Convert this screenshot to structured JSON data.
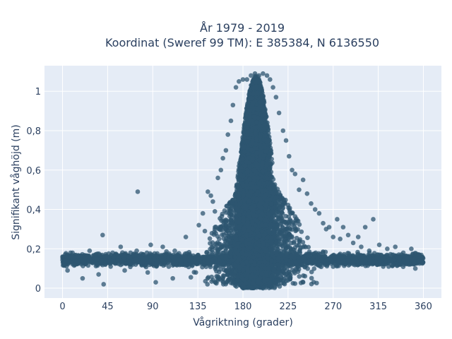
{
  "chart_data": {
    "type": "scatter",
    "title": "År 1979 - 2019",
    "subtitle": "Koordinat (Sweref 99 TM): E 385384, N 6136550",
    "xlabel": "Vågriktning (grader)",
    "ylabel": "Signifikant våghöjd (m)",
    "xlim": [
      -18,
      378
    ],
    "ylim": [
      -0.05,
      1.13
    ],
    "x_ticks": [
      0,
      45,
      90,
      135,
      180,
      225,
      270,
      315,
      360
    ],
    "y_ticks": [
      0,
      0.2,
      0.4,
      0.6,
      0.8,
      1
    ],
    "y_tick_labels": [
      "0",
      "0,2",
      "0,4",
      "0,6",
      "0,8",
      "1"
    ],
    "grid": true,
    "marker_color": "#2e5670",
    "background_color": "#e5ecf6",
    "points": [
      [
        0,
        0.16
      ],
      [
        3,
        0.14
      ],
      [
        5,
        0.09
      ],
      [
        8,
        0.18
      ],
      [
        12,
        0.12
      ],
      [
        15,
        0.16
      ],
      [
        20,
        0.05
      ],
      [
        22,
        0.15
      ],
      [
        27,
        0.19
      ],
      [
        30,
        0.13
      ],
      [
        33,
        0.17
      ],
      [
        36,
        0.07
      ],
      [
        39,
        0.14
      ],
      [
        40,
        0.27
      ],
      [
        41,
        0.02
      ],
      [
        44,
        0.16
      ],
      [
        48,
        0.11
      ],
      [
        50,
        0.18
      ],
      [
        55,
        0.14
      ],
      [
        58,
        0.21
      ],
      [
        62,
        0.09
      ],
      [
        66,
        0.16
      ],
      [
        70,
        0.12
      ],
      [
        74,
        0.19
      ],
      [
        75,
        0.49
      ],
      [
        80,
        0.15
      ],
      [
        85,
        0.08
      ],
      [
        88,
        0.22
      ],
      [
        93,
        0.03
      ],
      [
        95,
        0.16
      ],
      [
        100,
        0.21
      ],
      [
        105,
        0.13
      ],
      [
        110,
        0.05
      ],
      [
        112,
        0.19
      ],
      [
        118,
        0.12
      ],
      [
        123,
        0.26
      ],
      [
        128,
        0.15
      ],
      [
        133,
        0.08
      ],
      [
        136,
        0.32
      ],
      [
        140,
        0.38
      ],
      [
        142,
        0.29
      ],
      [
        145,
        0.49
      ],
      [
        148,
        0.47
      ],
      [
        150,
        0.44
      ],
      [
        152,
        0.39
      ],
      [
        155,
        0.56
      ],
      [
        158,
        0.6
      ],
      [
        160,
        0.66
      ],
      [
        163,
        0.7
      ],
      [
        165,
        0.78
      ],
      [
        168,
        0.85
      ],
      [
        170,
        0.93
      ],
      [
        173,
        1.02
      ],
      [
        176,
        1.05
      ],
      [
        180,
        1.06
      ],
      [
        184,
        1.06
      ],
      [
        188,
        1.08
      ],
      [
        192,
        1.09
      ],
      [
        196,
        1.08
      ],
      [
        200,
        1.09
      ],
      [
        204,
        1.08
      ],
      [
        207,
        1.06
      ],
      [
        210,
        1.02
      ],
      [
        213,
        0.97
      ],
      [
        216,
        0.89
      ],
      [
        220,
        0.8
      ],
      [
        223,
        0.75
      ],
      [
        226,
        0.67
      ],
      [
        229,
        0.6
      ],
      [
        232,
        0.58
      ],
      [
        236,
        0.5
      ],
      [
        240,
        0.55
      ],
      [
        244,
        0.48
      ],
      [
        248,
        0.43
      ],
      [
        252,
        0.4
      ],
      [
        256,
        0.38
      ],
      [
        260,
        0.33
      ],
      [
        263,
        0.3
      ],
      [
        266,
        0.31
      ],
      [
        270,
        0.26
      ],
      [
        274,
        0.35
      ],
      [
        277,
        0.25
      ],
      [
        280,
        0.31
      ],
      [
        285,
        0.27
      ],
      [
        290,
        0.23
      ],
      [
        295,
        0.26
      ],
      [
        298,
        0.21
      ],
      [
        302,
        0.31
      ],
      [
        306,
        0.19
      ],
      [
        310,
        0.35
      ],
      [
        314,
        0.17
      ],
      [
        316,
        0.22
      ],
      [
        320,
        0.11
      ],
      [
        324,
        0.2
      ],
      [
        328,
        0.14
      ],
      [
        332,
        0.21
      ],
      [
        336,
        0.12
      ],
      [
        340,
        0.18
      ],
      [
        344,
        0.15
      ],
      [
        348,
        0.2
      ],
      [
        352,
        0.1
      ],
      [
        356,
        0.17
      ],
      [
        359,
        0.13
      ],
      [
        180,
        0.01
      ],
      [
        200,
        0.0
      ],
      [
        170,
        0.03
      ],
      [
        215,
        0.02
      ],
      [
        155,
        0.04
      ],
      [
        240,
        0.03
      ]
    ]
  }
}
